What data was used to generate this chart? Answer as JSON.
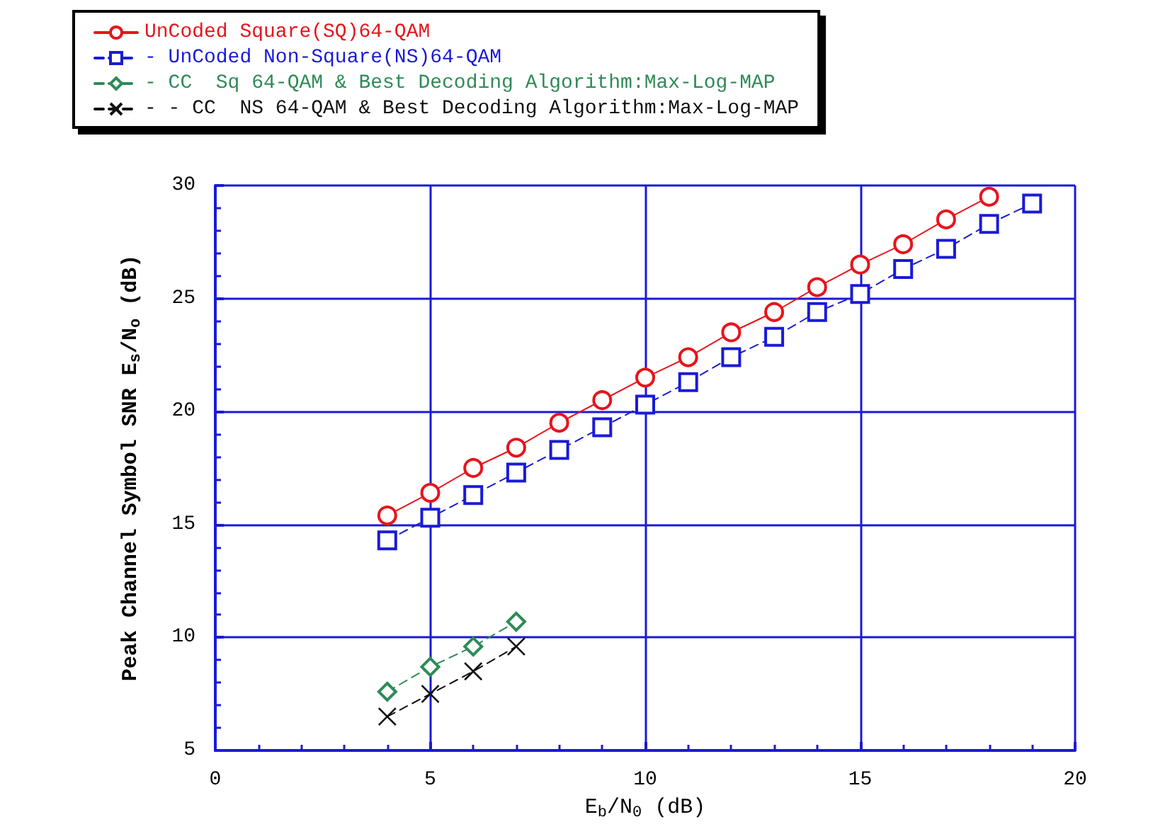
{
  "chart_data": {
    "type": "line",
    "xlabel": "E$_{b}$/N$_{0}$ (dB)",
    "ylabel": "Peak Channel Symbol SNR E$_{s}$/N$_{o}$ (dB)",
    "xlim": [
      0,
      20
    ],
    "xticks": [
      0,
      5,
      10,
      15,
      20
    ],
    "ylim": [
      5,
      30
    ],
    "yticks": [
      5,
      10,
      15,
      20,
      25,
      30
    ],
    "grid": true,
    "legend": "top",
    "series": [
      {
        "name": "UnCoded Square(SQ)64-QAM",
        "color": "#e8141c",
        "marker": "circle",
        "line_style": "solid",
        "x": [
          4,
          5,
          6,
          7,
          8,
          9,
          10,
          11,
          12,
          13,
          14,
          15,
          16,
          17,
          18
        ],
        "values": [
          15.4,
          16.4,
          17.5,
          18.4,
          19.5,
          20.5,
          21.5,
          22.4,
          23.5,
          24.4,
          25.5,
          26.5,
          27.4,
          28.5,
          29.5
        ]
      },
      {
        "name": "- UnCoded Non-Square(NS)64-QAM",
        "color": "#1a1ad8",
        "marker": "square",
        "line_style": "dashed",
        "x": [
          4,
          5,
          6,
          7,
          8,
          9,
          10,
          11,
          12,
          13,
          14,
          15,
          16,
          17,
          18,
          19
        ],
        "values": [
          14.3,
          15.3,
          16.3,
          17.3,
          18.3,
          19.3,
          20.3,
          21.3,
          22.4,
          23.3,
          24.4,
          25.2,
          26.3,
          27.2,
          28.3,
          29.2
        ]
      },
      {
        "name": "- CC  Sq 64-QAM & Best Decoding Algorithm:Max-Log-MAP",
        "color": "#2e8b57",
        "marker": "diamond",
        "line_style": "dashed",
        "x": [
          4,
          5,
          6,
          7
        ],
        "values": [
          7.6,
          8.7,
          9.6,
          10.7
        ]
      },
      {
        "name": "- - CC  NS 64-QAM & Best Decoding Algorithm:Max-Log-MAP",
        "color": "#111111",
        "marker": "cross",
        "line_style": "dashed",
        "x": [
          4,
          5,
          6,
          7
        ],
        "values": [
          6.5,
          7.5,
          8.5,
          9.6
        ]
      }
    ]
  }
}
